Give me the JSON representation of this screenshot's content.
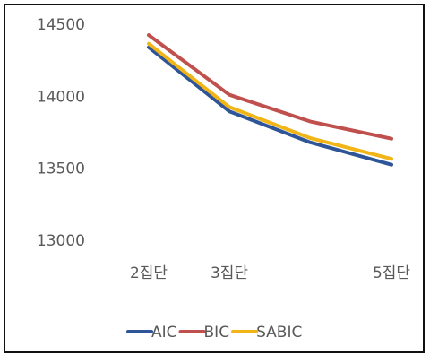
{
  "chart_data": {
    "type": "line",
    "categories": [
      "2집단",
      "3집단",
      "",
      "5집단"
    ],
    "ylim": [
      13000,
      14500
    ],
    "yticks": [
      13000,
      13500,
      14000,
      14500
    ],
    "grid": false,
    "legend_position": "bottom",
    "series": [
      {
        "name": "AIC",
        "color": "#2E5597",
        "values": [
          14340,
          13895,
          13680,
          13525
        ]
      },
      {
        "name": "BIC",
        "color": "#C0504D",
        "values": [
          14425,
          14010,
          13825,
          13705
        ]
      },
      {
        "name": "SABIC",
        "color": "#F2B517",
        "values": [
          14365,
          13925,
          13710,
          13565
        ]
      }
    ]
  }
}
